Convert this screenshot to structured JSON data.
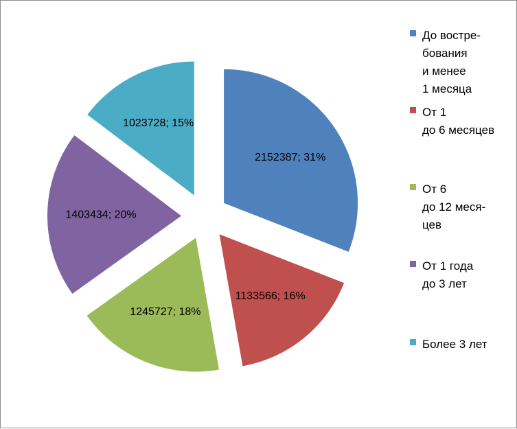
{
  "chart_data": {
    "type": "pie",
    "exploded": true,
    "legend_position": "right",
    "slices": [
      {
        "name": "До востре-\nбования\nи менее\n1 месяца",
        "value": 2152387,
        "percent": 31,
        "label": "2152387; 31%",
        "color": "#4f81bd"
      },
      {
        "name": "От 1\nдо 6 месяцев",
        "value": 1133566,
        "percent": 16,
        "label": "1133566; 16%",
        "color": "#c0504d"
      },
      {
        "name": "От 6\nдо 12 меся-\nцев",
        "value": 1245727,
        "percent": 18,
        "label": "1245727; 18%",
        "color": "#9bbb59"
      },
      {
        "name": "От 1 года\nдо 3 лет",
        "value": 1403434,
        "percent": 20,
        "label": "1403434; 20%",
        "color": "#8064a2"
      },
      {
        "name": "Более 3 лет",
        "value": 1023728,
        "percent": 15,
        "label": "1023728; 15%",
        "color": "#4bacc6"
      }
    ]
  }
}
